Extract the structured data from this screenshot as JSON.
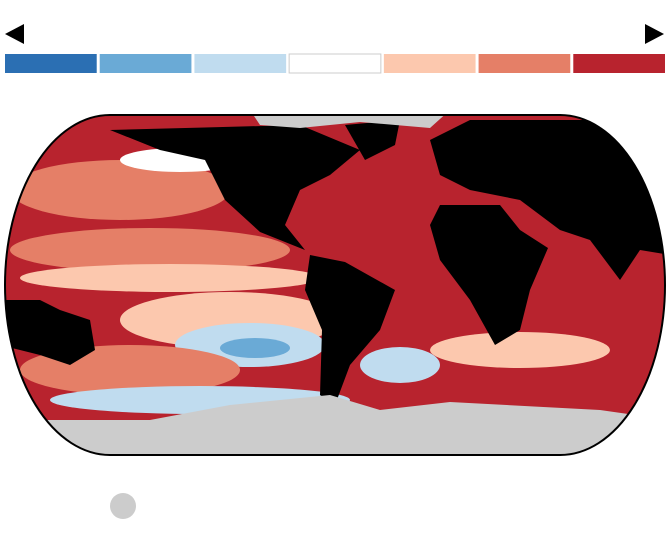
{
  "legend": {
    "colors": [
      "#2b6fb3",
      "#6aaad6",
      "#c0dcef",
      "#ffffff",
      "#fcc8ae",
      "#e57f67",
      "#b8232e"
    ]
  },
  "no_data_color": "#cccccc"
}
